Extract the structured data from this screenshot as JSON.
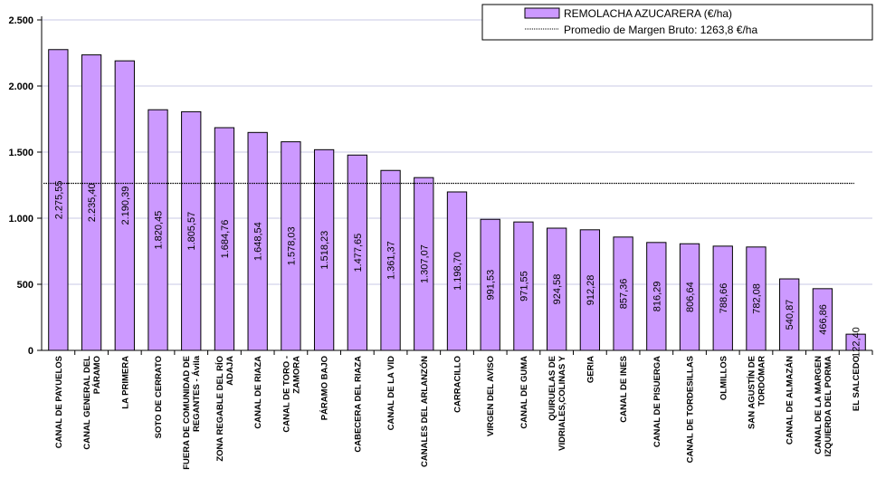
{
  "chart_data": {
    "type": "bar",
    "categories": [
      "CANAL DE PAYUELOS",
      "CANAL GENERAL DEL PÁRAMO",
      "LA PRIMERA",
      "SOTO DE CERRATO",
      "FUERA DE COMUNIDAD DE REGANTES - Ávila",
      "ZONA REGABLE DEL RÍO ADAJA",
      "CANAL DE RIAZA",
      "CANAL DE TORO - ZAMORA",
      "PÁRAMO BAJO",
      "CABECERA DEL RIAZA",
      "CANAL DE LA VID",
      "CANALES DEL ARLANZÓN",
      "CARRACILLO",
      "VIRGEN DEL AVISO",
      "CANAL DE GUMA",
      "QUIRUELAS DE VIDRIALES,COLINAS Y",
      "GERIA",
      "CANAL DE INES",
      "CANAL DE PISUERGA",
      "CANAL DE TORDESILLAS",
      "OLMILLOS",
      "SAN AGUSTÍN DE TORDÓMAR",
      "CANAL DE ALMAZÁN",
      "CANAL DE LA MARGEN IZQUIERDA DEL PORMA",
      "EL SALCEDO"
    ],
    "category_lines": [
      [
        "CANAL DE PAYUELOS"
      ],
      [
        "CANAL GENERAL DEL",
        "PÁRAMO"
      ],
      [
        "LA PRIMERA"
      ],
      [
        "SOTO DE CERRATO"
      ],
      [
        "FUERA DE COMUNIDAD DE",
        "REGANTES - Ávila"
      ],
      [
        "ZONA REGABLE DEL RÍO",
        "ADAJA"
      ],
      [
        "CANAL DE RIAZA"
      ],
      [
        "CANAL DE TORO -",
        "ZAMORA"
      ],
      [
        "PÁRAMO BAJO"
      ],
      [
        "CABECERA DEL RIAZA"
      ],
      [
        "CANAL DE LA VID"
      ],
      [
        "CANALES DEL ARLANZÓN"
      ],
      [
        "CARRACILLO"
      ],
      [
        "VIRGEN DEL AVISO"
      ],
      [
        "CANAL DE GUMA"
      ],
      [
        "QUIRUELAS DE",
        "VIDRIALES,COLINAS Y"
      ],
      [
        "GERIA"
      ],
      [
        "CANAL DE INES"
      ],
      [
        "CANAL DE PISUERGA"
      ],
      [
        "CANAL DE TORDESILLAS"
      ],
      [
        "OLMILLOS"
      ],
      [
        "SAN AGUSTÍN DE",
        "TORDÓMAR"
      ],
      [
        "CANAL DE ALMAZÁN"
      ],
      [
        "CANAL DE LA MARGEN",
        "IZQUIERDA DEL PORMA"
      ],
      [
        "EL SALCEDO"
      ]
    ],
    "series": [
      {
        "name": "REMOLACHA AZUCARERA (€/ha)",
        "values": [
          2275.55,
          2235.4,
          2190.39,
          1820.45,
          1805.57,
          1684.76,
          1648.54,
          1578.03,
          1518.23,
          1477.65,
          1361.37,
          1307.07,
          1198.7,
          991.53,
          971.55,
          924.58,
          912.28,
          857.36,
          816.29,
          806.64,
          788.66,
          782.08,
          540.87,
          466.86,
          122.4
        ],
        "data_labels": [
          "2.275,55",
          "2.235,40",
          "2.190,39",
          "1.820,45",
          "1.805,57",
          "1.684,76",
          "1.648,54",
          "1.578,03",
          "1.518,23",
          "1.477,65",
          "1.361,37",
          "1.307,07",
          "1.198,70",
          "991,53",
          "971,55",
          "924,58",
          "912,28",
          "857,36",
          "816,29",
          "806,64",
          "788,66",
          "782,08",
          "540,87",
          "466,86",
          "122,40"
        ]
      }
    ],
    "reference_line": {
      "name": "Promedio de Margen Bruto: 1263,8 €/ha",
      "value": 1263.8
    },
    "ylim": [
      0,
      2500
    ],
    "yticks": [
      0,
      500,
      1000,
      1500,
      2000,
      2500
    ],
    "ytick_labels": [
      "0",
      "500",
      "1.000",
      "1.500",
      "2.000",
      "2.500"
    ],
    "title": "",
    "xlabel": "",
    "ylabel": "",
    "grid": true,
    "legend_position": "top-right",
    "colors": {
      "bar_fill": "#cc99ff",
      "bar_stroke": "#000000",
      "grid": "#c8c8e6",
      "reference_line": "#000000"
    }
  }
}
